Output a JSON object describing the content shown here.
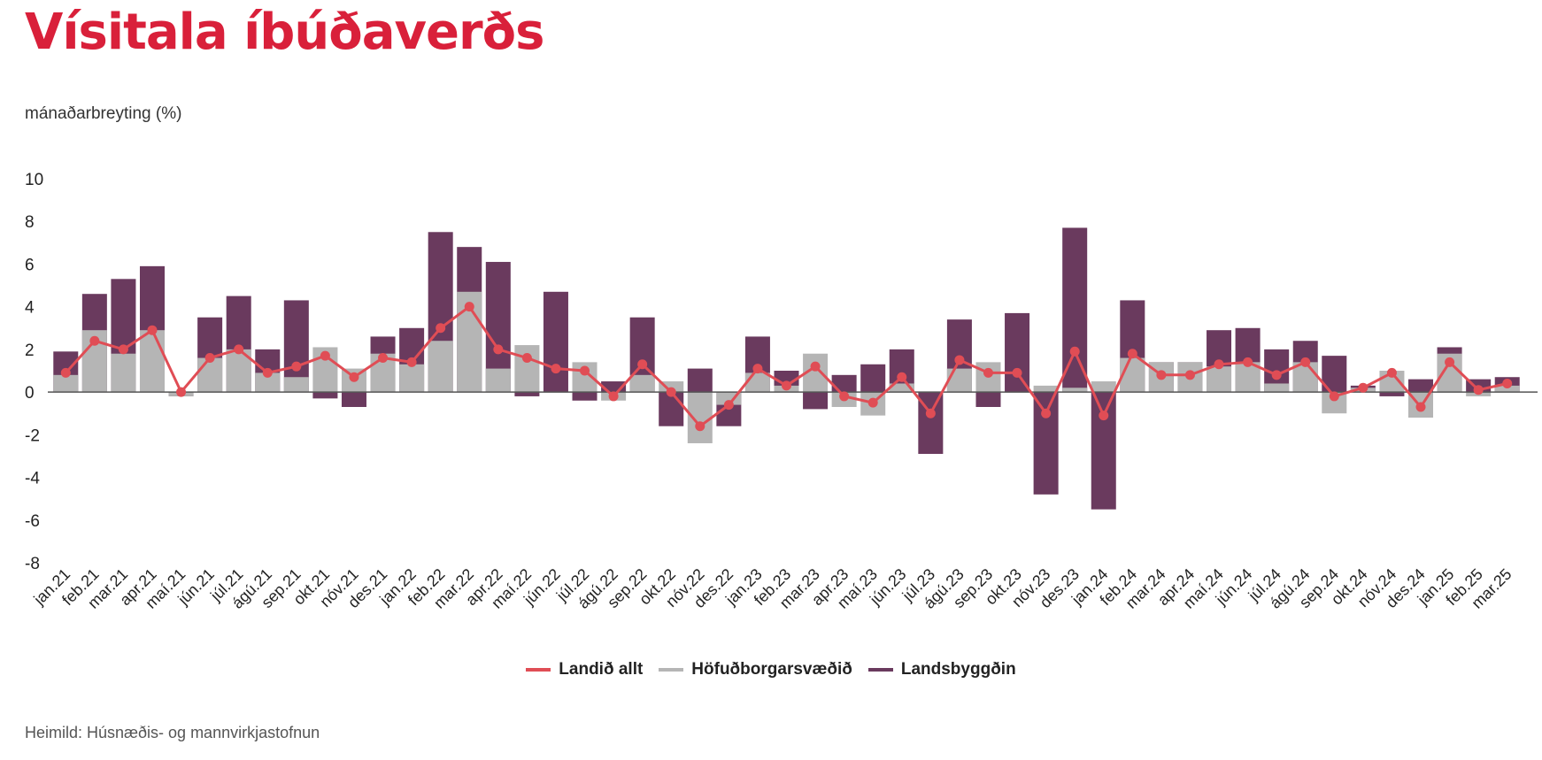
{
  "title": "Vísitala íbúðaverðs",
  "subtitle": "mánaðarbreyting (%)",
  "source": "Heimild: Húsnæðis- og mannvirkjastofnun",
  "colors": {
    "title": "#d9203a",
    "landid_allt": "#e04d55",
    "hofudborgarsvaedid": "#b5b5b5",
    "landsbyggdin": "#6a3a5e",
    "zero_line": "#555555"
  },
  "chart_data": {
    "type": "bar+line",
    "categories": [
      "jan.21",
      "feb.21",
      "mar.21",
      "apr.21",
      "maí.21",
      "jún.21",
      "júl.21",
      "ágú.21",
      "sep.21",
      "okt.21",
      "nóv.21",
      "des.21",
      "jan.22",
      "feb.22",
      "mar.22",
      "apr.22",
      "maí.22",
      "jún.22",
      "júl.22",
      "ágú.22",
      "sep.22",
      "okt.22",
      "nóv.22",
      "des.22",
      "jan.23",
      "feb.23",
      "mar.23",
      "apr.23",
      "maí.23",
      "jún.23",
      "júl.23",
      "ágú.23",
      "sep.23",
      "okt.23",
      "nóv.23",
      "des.23",
      "jan.24",
      "feb.24",
      "mar.24",
      "apr.24",
      "maí.24",
      "jún.24",
      "júl.24",
      "ágú.24",
      "sep.24",
      "okt.24",
      "nóv.24",
      "des.24",
      "jan.25",
      "feb.25",
      "mar.25"
    ],
    "series": [
      {
        "name": "Landið allt",
        "type": "line",
        "values": [
          0.9,
          2.4,
          2.0,
          2.9,
          0.0,
          1.6,
          2.0,
          0.9,
          1.2,
          1.7,
          0.7,
          1.6,
          1.4,
          3.0,
          4.0,
          2.0,
          1.6,
          1.1,
          1.0,
          -0.2,
          1.3,
          0.0,
          -1.6,
          -0.6,
          1.1,
          0.3,
          1.2,
          -0.2,
          -0.5,
          0.7,
          -1.0,
          1.5,
          0.9,
          0.9,
          -1.0,
          1.9,
          -1.1,
          1.8,
          0.8,
          0.8,
          1.3,
          1.4,
          0.8,
          1.4,
          -0.2,
          0.2,
          0.9,
          -0.7,
          1.4,
          0.1,
          0.4
        ]
      },
      {
        "name": "Höfuðborgarsvæðið",
        "type": "bar",
        "values": [
          0.8,
          2.9,
          1.8,
          2.9,
          -0.2,
          1.6,
          2.0,
          0.9,
          0.7,
          2.1,
          1.1,
          1.8,
          1.3,
          2.4,
          4.7,
          1.1,
          2.2,
          0.0,
          1.4,
          -0.4,
          0.8,
          0.5,
          -2.4,
          -0.6,
          0.9,
          0.3,
          1.8,
          -0.7,
          -1.1,
          0.4,
          0.0,
          1.1,
          1.4,
          0.0,
          0.3,
          0.2,
          0.5,
          1.6,
          1.4,
          1.4,
          1.2,
          1.4,
          0.4,
          1.4,
          -1.0,
          0.2,
          1.0,
          -1.2,
          1.8,
          -0.2,
          0.3
        ]
      },
      {
        "name": "Landsbyggðin",
        "type": "bar",
        "values": [
          1.9,
          4.6,
          5.3,
          5.9,
          -0.2,
          3.5,
          4.5,
          2.0,
          4.3,
          -0.3,
          -0.7,
          2.6,
          3.0,
          7.5,
          6.8,
          6.1,
          -0.2,
          4.7,
          -0.4,
          0.5,
          3.5,
          -1.6,
          1.1,
          -1.6,
          2.6,
          1.0,
          -0.8,
          0.8,
          1.3,
          2.0,
          -2.9,
          3.4,
          -0.7,
          3.7,
          -4.8,
          7.7,
          -5.5,
          4.3,
          1.4,
          1.4,
          2.9,
          3.0,
          2.0,
          2.4,
          1.7,
          0.3,
          -0.2,
          0.6,
          2.1,
          0.6,
          0.7
        ]
      }
    ],
    "yaxis": {
      "ticks": [
        10,
        8,
        6,
        4,
        2,
        0,
        -2,
        -4,
        -6,
        -8
      ],
      "ylim": [
        -8,
        10
      ]
    },
    "grid": false,
    "legend_position": "bottom-center"
  }
}
